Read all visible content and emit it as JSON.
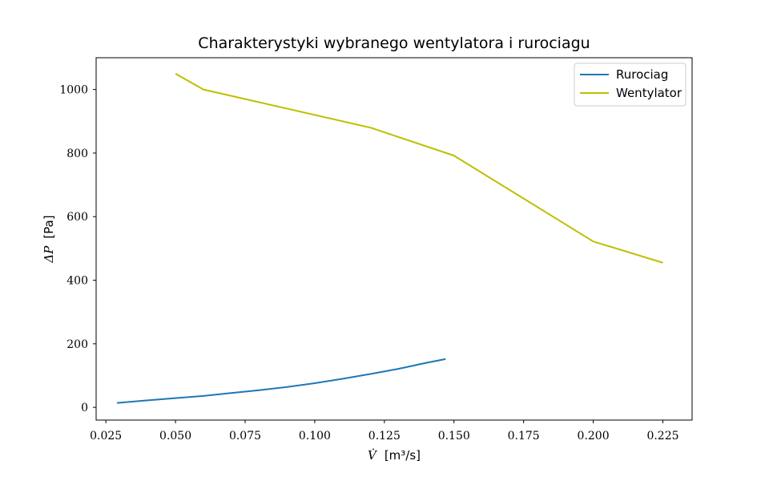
{
  "chart_data": {
    "type": "line",
    "title": "Charakterystyki wybranego wentylatora i rurociagu",
    "xlabel": {
      "symbol": "V̇",
      "unit": "[m³/s]"
    },
    "ylabel": {
      "symbol": "ΔP",
      "unit": "[Pa]"
    },
    "xlim": [
      0.0215,
      0.2355
    ],
    "ylim": [
      -40,
      1100
    ],
    "xticks": [
      0.025,
      0.05,
      0.075,
      0.1,
      0.125,
      0.15,
      0.175,
      0.2,
      0.225
    ],
    "xtick_labels": [
      "0.025",
      "0.050",
      "0.075",
      "0.100",
      "0.125",
      "0.150",
      "0.175",
      "0.200",
      "0.225"
    ],
    "yticks": [
      0,
      200,
      400,
      600,
      800,
      1000
    ],
    "ytick_labels": [
      "0",
      "200",
      "400",
      "600",
      "800",
      "1000"
    ],
    "grid": false,
    "legend": "top-right",
    "series": [
      {
        "name": "Rurociag",
        "color": "#1f77b4",
        "x": [
          0.029,
          0.04,
          0.05,
          0.06,
          0.07,
          0.08,
          0.09,
          0.1,
          0.11,
          0.12,
          0.13,
          0.14,
          0.147
        ],
        "y": [
          14,
          22,
          29,
          36,
          45,
          54,
          64,
          76,
          90,
          105,
          121,
          140,
          152
        ]
      },
      {
        "name": "Wentylator",
        "color": "#bfbf00",
        "x": [
          0.05,
          0.06,
          0.12,
          0.15,
          0.2,
          0.225
        ],
        "y": [
          1050,
          1000,
          880,
          792,
          522,
          455
        ]
      }
    ]
  }
}
